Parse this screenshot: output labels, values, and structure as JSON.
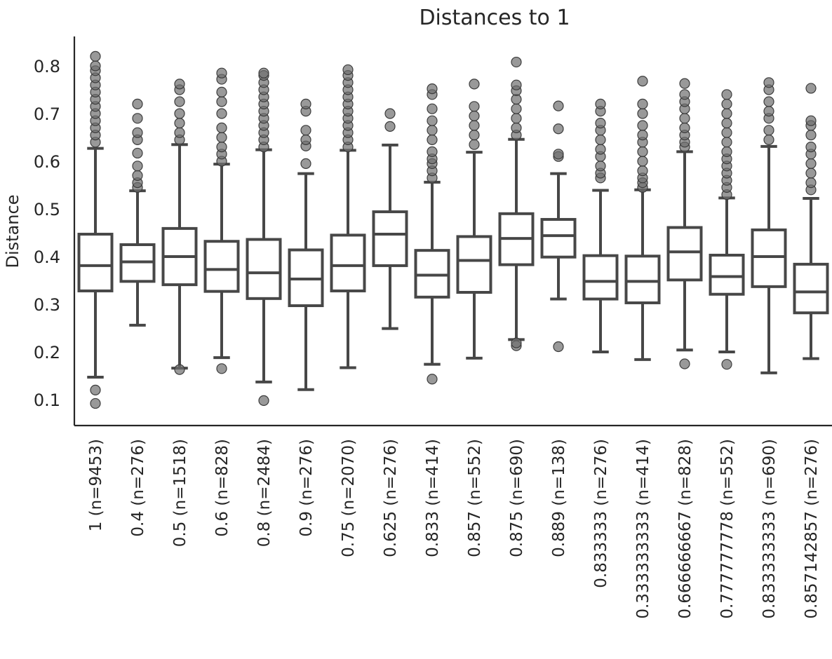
{
  "chart_data": {
    "type": "box",
    "title": "Distances to 1",
    "xlabel": "",
    "ylabel": "Distance",
    "ylim": [
      0.045,
      0.855
    ],
    "yticks": [
      "0.1",
      "0.2",
      "0.3",
      "0.4",
      "0.5",
      "0.6",
      "0.7",
      "0.8"
    ],
    "grid": false,
    "legend": "none",
    "box_color": "#474747",
    "outlier_color": "#6e6e6e",
    "categories": [
      "1 (n=9453)",
      "0.4 (n=276)",
      "0.5 (n=1518)",
      "0.6 (n=828)",
      "0.8 (n=2484)",
      "0.9 (n=276)",
      "0.75 (n=2070)",
      "0.625 (n=276)",
      "0.833 (n=414)",
      "0.857 (n=552)",
      "0.875 (n=690)",
      "0.889 (n=138)",
      "0.833333 (n=276)",
      "0.333333333 (n=414)",
      "0.666666667 (n=828)",
      "0.777777778 (n=552)",
      "0.833333333 (n=690)",
      "0.857142857 (n=276)"
    ],
    "boxes": [
      {
        "whislo": 0.147,
        "q1": 0.328,
        "med": 0.381,
        "q3": 0.447,
        "whishi": 0.627,
        "fliers": [
          0.12,
          0.092,
          0.64,
          0.655,
          0.67,
          0.685,
          0.7,
          0.715,
          0.73,
          0.745,
          0.76,
          0.775,
          0.79,
          0.8,
          0.82
        ]
      },
      {
        "whislo": 0.256,
        "q1": 0.348,
        "med": 0.389,
        "q3": 0.425,
        "whishi": 0.538,
        "fliers": [
          0.545,
          0.555,
          0.57,
          0.59,
          0.617,
          0.645,
          0.66,
          0.69,
          0.72
        ]
      },
      {
        "whislo": 0.166,
        "q1": 0.341,
        "med": 0.4,
        "q3": 0.459,
        "whishi": 0.635,
        "fliers": [
          0.163,
          0.645,
          0.66,
          0.68,
          0.7,
          0.725,
          0.75,
          0.762
        ]
      },
      {
        "whislo": 0.188,
        "q1": 0.327,
        "med": 0.373,
        "q3": 0.432,
        "whishi": 0.594,
        "fliers": [
          0.165,
          0.6,
          0.615,
          0.63,
          0.65,
          0.67,
          0.7,
          0.725,
          0.745,
          0.772,
          0.785
        ]
      },
      {
        "whislo": 0.137,
        "q1": 0.312,
        "med": 0.366,
        "q3": 0.436,
        "whishi": 0.624,
        "fliers": [
          0.098,
          0.63,
          0.645,
          0.66,
          0.675,
          0.69,
          0.705,
          0.72,
          0.735,
          0.75,
          0.765,
          0.78,
          0.785
        ]
      },
      {
        "whislo": 0.121,
        "q1": 0.297,
        "med": 0.353,
        "q3": 0.414,
        "whishi": 0.574,
        "fliers": [
          0.595,
          0.632,
          0.645,
          0.665,
          0.705,
          0.72
        ]
      },
      {
        "whislo": 0.167,
        "q1": 0.328,
        "med": 0.381,
        "q3": 0.445,
        "whishi": 0.623,
        "fliers": [
          0.63,
          0.645,
          0.66,
          0.675,
          0.69,
          0.705,
          0.72,
          0.735,
          0.75,
          0.765,
          0.78,
          0.792
        ]
      },
      {
        "whislo": 0.249,
        "q1": 0.381,
        "med": 0.447,
        "q3": 0.494,
        "whishi": 0.634,
        "fliers": [
          0.673,
          0.7
        ]
      },
      {
        "whislo": 0.174,
        "q1": 0.315,
        "med": 0.361,
        "q3": 0.413,
        "whishi": 0.556,
        "fliers": [
          0.143,
          0.565,
          0.58,
          0.595,
          0.605,
          0.62,
          0.645,
          0.665,
          0.685,
          0.71,
          0.74,
          0.752
        ]
      },
      {
        "whislo": 0.187,
        "q1": 0.325,
        "med": 0.392,
        "q3": 0.442,
        "whishi": 0.619,
        "fliers": [
          0.635,
          0.655,
          0.675,
          0.695,
          0.715,
          0.762
        ]
      },
      {
        "whislo": 0.226,
        "q1": 0.383,
        "med": 0.438,
        "q3": 0.49,
        "whishi": 0.646,
        "fliers": [
          0.213,
          0.219,
          0.655,
          0.67,
          0.69,
          0.71,
          0.73,
          0.748,
          0.76,
          0.808
        ]
      },
      {
        "whislo": 0.311,
        "q1": 0.399,
        "med": 0.444,
        "q3": 0.478,
        "whishi": 0.574,
        "fliers": [
          0.211,
          0.61,
          0.615,
          0.668,
          0.716
        ]
      },
      {
        "whislo": 0.2,
        "q1": 0.311,
        "med": 0.348,
        "q3": 0.402,
        "whishi": 0.539,
        "fliers": [
          0.565,
          0.575,
          0.59,
          0.61,
          0.625,
          0.645,
          0.665,
          0.68,
          0.705,
          0.72
        ]
      },
      {
        "whislo": 0.184,
        "q1": 0.303,
        "med": 0.348,
        "q3": 0.401,
        "whishi": 0.54,
        "fliers": [
          0.545,
          0.555,
          0.565,
          0.58,
          0.6,
          0.62,
          0.64,
          0.655,
          0.675,
          0.7,
          0.72,
          0.768
        ]
      },
      {
        "whislo": 0.204,
        "q1": 0.351,
        "med": 0.41,
        "q3": 0.461,
        "whishi": 0.62,
        "fliers": [
          0.175,
          0.63,
          0.64,
          0.655,
          0.67,
          0.69,
          0.71,
          0.725,
          0.74,
          0.763
        ]
      },
      {
        "whislo": 0.2,
        "q1": 0.321,
        "med": 0.358,
        "q3": 0.403,
        "whishi": 0.523,
        "fliers": [
          0.174,
          0.53,
          0.545,
          0.56,
          0.575,
          0.59,
          0.605,
          0.62,
          0.64,
          0.66,
          0.68,
          0.7,
          0.72,
          0.74
        ]
      },
      {
        "whislo": 0.156,
        "q1": 0.337,
        "med": 0.4,
        "q3": 0.456,
        "whishi": 0.631,
        "fliers": [
          0.645,
          0.665,
          0.69,
          0.705,
          0.725,
          0.75,
          0.765
        ]
      },
      {
        "whislo": 0.186,
        "q1": 0.282,
        "med": 0.326,
        "q3": 0.384,
        "whishi": 0.522,
        "fliers": [
          0.54,
          0.555,
          0.575,
          0.595,
          0.615,
          0.63,
          0.655,
          0.675,
          0.685,
          0.753
        ]
      }
    ]
  }
}
